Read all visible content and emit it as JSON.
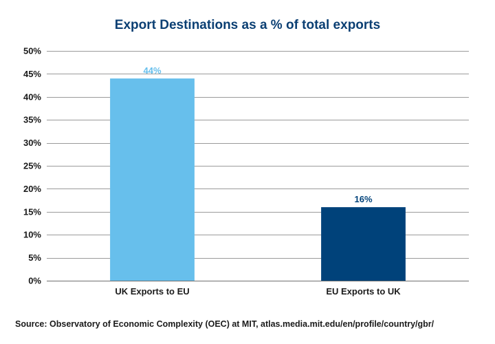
{
  "chart_data": {
    "type": "bar",
    "title": "Export Destinations as a % of total exports",
    "categories": [
      "UK Exports to EU",
      "EU Exports to UK"
    ],
    "values": [
      44,
      16
    ],
    "data_labels": [
      "44%",
      "16%"
    ],
    "bar_colors": [
      "#67bfec",
      "#00427a"
    ],
    "label_colors": [
      "#67bfec",
      "#00427a"
    ],
    "ylim": [
      0,
      50
    ],
    "y_tick_values": [
      0,
      5,
      10,
      15,
      20,
      25,
      30,
      35,
      40,
      45,
      50
    ],
    "y_tick_labels": [
      "0%",
      "5%",
      "10%",
      "15%",
      "20%",
      "25%",
      "30%",
      "35%",
      "40%",
      "45%",
      "50%"
    ],
    "xlabel": "",
    "ylabel": "",
    "grid": true,
    "legend": "none"
  },
  "source_note": "Source: Observatory of Economic Complexity (OEC) at MIT, atlas.media.mit.edu/en/profile/country/gbr/",
  "colors": {
    "title": "#0b3f73",
    "text": "#1a1a1a",
    "grid": "#9a9a9a",
    "axis": "#6e6e6e"
  }
}
